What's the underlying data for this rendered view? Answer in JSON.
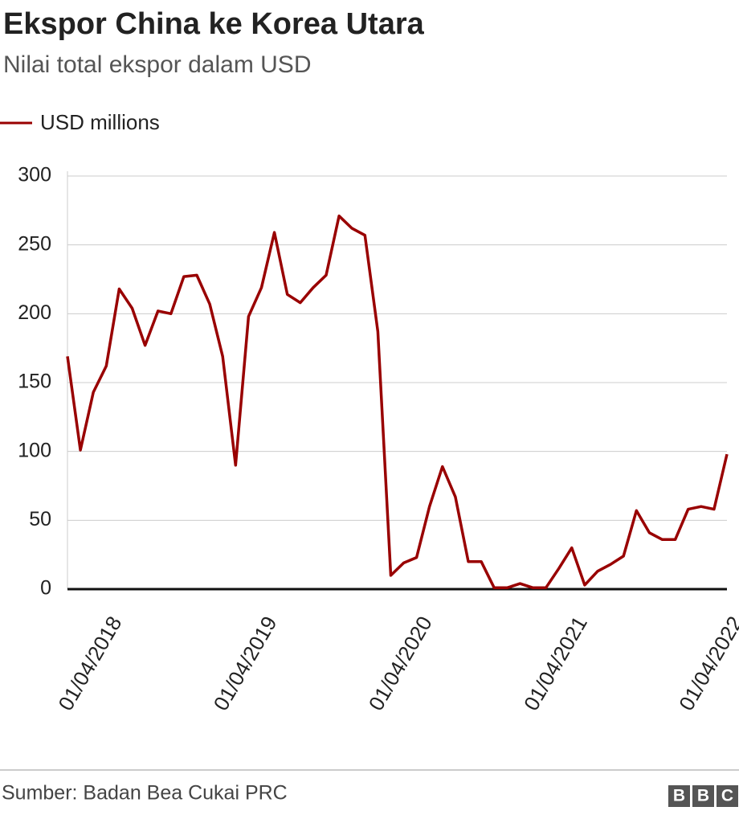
{
  "chart_data": {
    "type": "line",
    "title": "Ekspor China ke Korea Utara",
    "subtitle": "Nilai total ekspor dalam USD",
    "source": "Sumber: Badan Bea Cukai PRC",
    "logo": [
      "B",
      "B",
      "C"
    ],
    "x": [
      "01/01/2018",
      "01/02/2018",
      "01/03/2018",
      "01/04/2018",
      "01/05/2018",
      "01/06/2018",
      "01/07/2018",
      "01/08/2018",
      "01/09/2018",
      "01/10/2018",
      "01/11/2018",
      "01/12/2018",
      "01/01/2019",
      "01/02/2019",
      "01/03/2019",
      "01/04/2019",
      "01/05/2019",
      "01/06/2019",
      "01/07/2019",
      "01/08/2019",
      "01/09/2019",
      "01/10/2019",
      "01/11/2019",
      "01/12/2019",
      "01/01/2020",
      "01/02/2020",
      "01/03/2020",
      "01/04/2020",
      "01/05/2020",
      "01/06/2020",
      "01/07/2020",
      "01/08/2020",
      "01/09/2020",
      "01/10/2020",
      "01/11/2020",
      "01/12/2020",
      "01/01/2021",
      "01/02/2021",
      "01/03/2021",
      "01/04/2021",
      "01/05/2021",
      "01/06/2021",
      "01/07/2021",
      "01/08/2021",
      "01/09/2021",
      "01/10/2021",
      "01/11/2021",
      "01/12/2021",
      "01/01/2022",
      "01/02/2022",
      "01/03/2022",
      "01/04/2022"
    ],
    "xticks": [
      "01/04/2018",
      "01/04/2019",
      "01/04/2020",
      "01/04/2021",
      "01/04/2022"
    ],
    "series": [
      {
        "name": "USD millions",
        "color": "#990000",
        "values": [
          169,
          101,
          143,
          162,
          218,
          204,
          177,
          202,
          200,
          227,
          228,
          207,
          169,
          90,
          198,
          219,
          259,
          214,
          208,
          219,
          228,
          271,
          262,
          257,
          187,
          10,
          19,
          23,
          60,
          89,
          67,
          20,
          20,
          1,
          1,
          4,
          1,
          1,
          15,
          30,
          3,
          13,
          18,
          24,
          57,
          41,
          36,
          36,
          58,
          60,
          58,
          98
        ]
      }
    ],
    "ylim": [
      0,
      300
    ],
    "yticks": [
      0,
      50,
      100,
      150,
      200,
      250,
      300
    ],
    "grid": true
  }
}
